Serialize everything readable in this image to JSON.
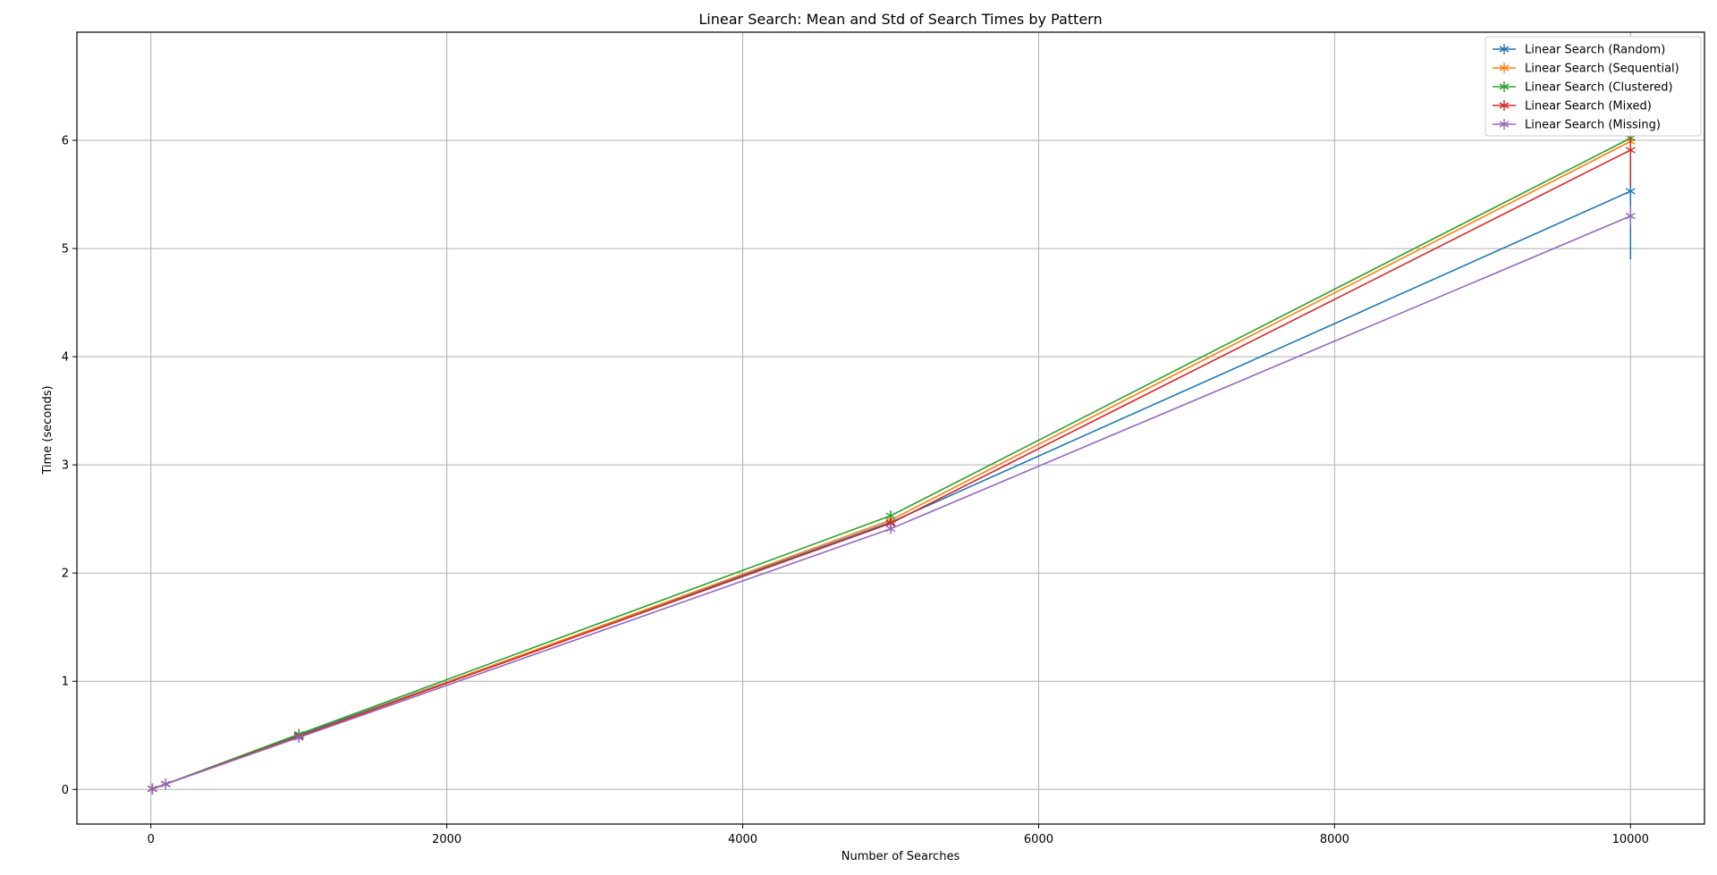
{
  "chart_data": {
    "type": "line",
    "title": "Linear Search: Mean and Std of Search Times by Pattern",
    "xlabel": "Number of Searches",
    "ylabel": "Time (seconds)",
    "xlim": [
      -500,
      10500
    ],
    "ylim": [
      -0.32,
      7.0
    ],
    "xticks": [
      0,
      2000,
      4000,
      6000,
      8000,
      10000
    ],
    "yticks": [
      0,
      1,
      2,
      3,
      4,
      5,
      6
    ],
    "grid": true,
    "legend_position": "top-right",
    "x": [
      10,
      100,
      1000,
      5000,
      10000
    ],
    "series": [
      {
        "name": "Linear Search (Random)",
        "color": "#1f77b4",
        "values": [
          0.005,
          0.05,
          0.5,
          2.47,
          5.53
        ],
        "std": [
          0.0,
          0.0,
          0.0,
          0.02,
          0.63
        ]
      },
      {
        "name": "Linear Search (Sequential)",
        "color": "#ff7f0e",
        "values": [
          0.005,
          0.05,
          0.49,
          2.49,
          5.99
        ],
        "std": [
          0.0,
          0.0,
          0.0,
          0.03,
          0.1
        ]
      },
      {
        "name": "Linear Search (Clustered)",
        "color": "#2ca02c",
        "values": [
          0.005,
          0.05,
          0.51,
          2.53,
          6.02
        ],
        "std": [
          0.0,
          0.0,
          0.0,
          0.04,
          0.07
        ]
      },
      {
        "name": "Linear Search (Mixed)",
        "color": "#d62728",
        "values": [
          0.005,
          0.05,
          0.49,
          2.46,
          5.91
        ],
        "std": [
          0.0,
          0.0,
          0.0,
          0.03,
          0.33
        ]
      },
      {
        "name": "Linear Search (Missing)",
        "color": "#9467bd",
        "values": [
          0.005,
          0.05,
          0.48,
          2.41,
          5.3
        ],
        "std": [
          0.0,
          0.0,
          0.0,
          0.02,
          0.1
        ]
      }
    ]
  }
}
